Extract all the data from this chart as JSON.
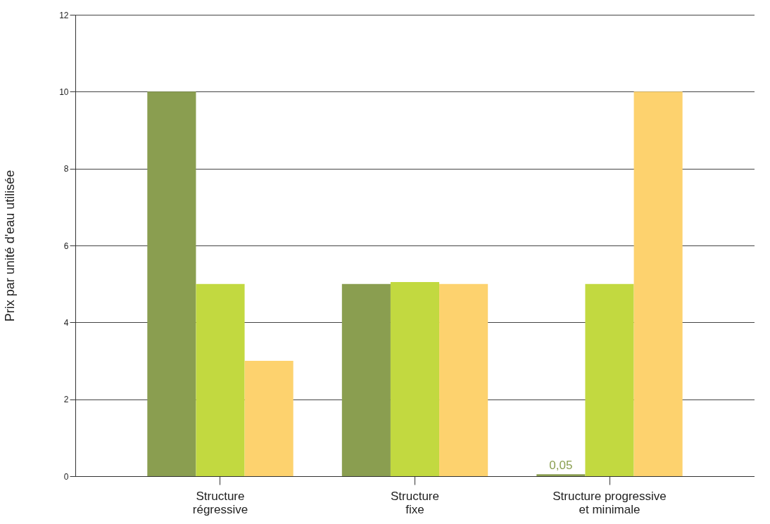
{
  "chart_data": {
    "type": "bar",
    "ylabel": "Prix par unité d'eau utilisée",
    "categories": [
      "Structure\nrégressive",
      "Structure\nfixe",
      "Structure progressive\net minimale"
    ],
    "series": [
      {
        "color": "#8a9e50",
        "values": [
          10,
          5,
          0.05
        ],
        "value_labels": [
          null,
          null,
          "0,05"
        ]
      },
      {
        "color": "#c2d940",
        "values": [
          5,
          5.05,
          5
        ]
      },
      {
        "color": "#fdd26e",
        "values": [
          3,
          5,
          10
        ]
      }
    ],
    "ylim": [
      0,
      12
    ],
    "yticks": [
      0,
      2,
      4,
      6,
      8,
      10,
      12
    ],
    "grid": "y"
  }
}
